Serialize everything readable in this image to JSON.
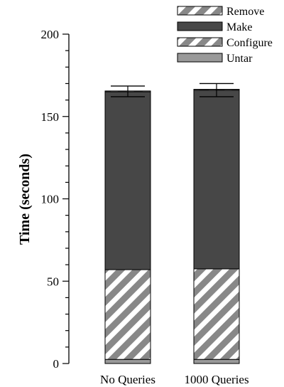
{
  "chart_data": {
    "type": "bar",
    "stacked": true,
    "categories": [
      "No Queries",
      "1000 Queries"
    ],
    "series": [
      {
        "name": "Untar",
        "values": [
          2.5,
          2.5
        ],
        "color": "#999999",
        "pattern": "solid"
      },
      {
        "name": "Configure",
        "values": [
          54.5,
          55
        ],
        "color": "#888888",
        "pattern": "diagonal-stripes"
      },
      {
        "name": "Make",
        "values": [
          108,
          108.5
        ],
        "color": "#474747",
        "pattern": "solid"
      },
      {
        "name": "Remove",
        "values": [
          0.5,
          0.5
        ],
        "color": "#888888",
        "pattern": "diagonal-stripes"
      }
    ],
    "error_bars": [
      {
        "low": 162,
        "high": 168.5
      },
      {
        "low": 162,
        "high": 170
      }
    ],
    "title": "",
    "xlabel": "",
    "ylabel": "Time (seconds)",
    "ylim": [
      0,
      200
    ],
    "yticks": [
      0,
      50,
      100,
      150,
      200
    ],
    "y_minor_step": 10,
    "grid": false,
    "legend_position": "top-right",
    "legend_order": [
      "Remove",
      "Make",
      "Configure",
      "Untar"
    ]
  }
}
